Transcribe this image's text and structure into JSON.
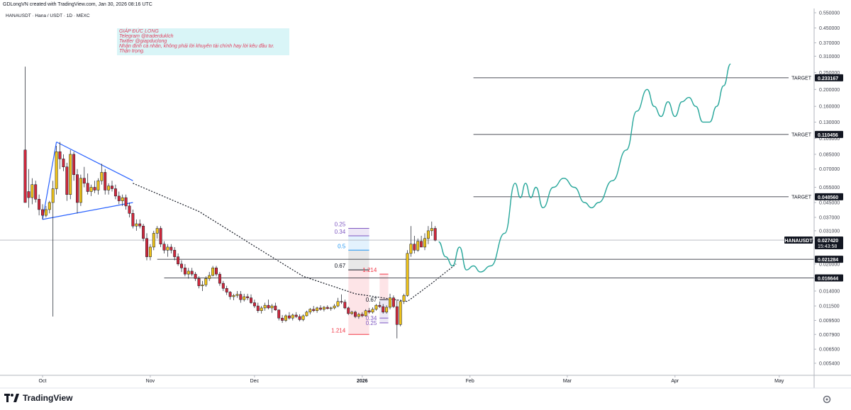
{
  "header": {
    "credit": "GDLongVN created with TradingView.com, Jan 30, 2026 08:16 UTC",
    "symbol_title": "HANAUSDT · Hana / USDT · 1D · MEXC"
  },
  "note": {
    "lines": [
      "GIÁP ĐỨC LONG",
      "Telegram @traderduklch",
      "Twitter @giapduclong",
      "Nhận định cá nhân, không phải lời khuyên tài chính hay lời kêu đầu tư.",
      "Thận trọng."
    ]
  },
  "footer": {
    "logo_text": "TradingView"
  },
  "colors": {
    "up": "#f0c419",
    "down": "#d0283c",
    "triangle": "#2962ff",
    "projection": "#26a69a",
    "fib_purple": "#7e57c2",
    "fib_blue": "#2196f3",
    "fib_red": "#f23645"
  },
  "chart_data": {
    "type": "candlestick",
    "y_scale": "log",
    "y_ticks": [
      "0.550000",
      "0.450000",
      "0.370000",
      "0.310000",
      "0.250000",
      "0.200000",
      "0.160000",
      "0.130000",
      "0.105000",
      "0.085000",
      "0.070000",
      "0.055000",
      "0.045000",
      "0.037000",
      "0.031000",
      "0.025000",
      "0.020000",
      "0.016500",
      "0.014000",
      "0.011500",
      "0.009500",
      "0.007900",
      "0.006500",
      "0.005400"
    ],
    "x_ticks": [
      {
        "label": "Oct",
        "day": 0
      },
      {
        "label": "Nov",
        "day": 31
      },
      {
        "label": "Dec",
        "day": 61
      },
      {
        "label": "2026",
        "day": 92,
        "bold": true
      },
      {
        "label": "Feb",
        "day": 123
      },
      {
        "label": "Mar",
        "day": 151
      },
      {
        "label": "Apr",
        "day": 182
      },
      {
        "label": "May",
        "day": 212
      }
    ],
    "candles_compact": "-5,0.09,0.27,0.055,0.045;-4,0.052,0.07,0.042,0.048;-3,0.048,0.062,0.044,0.057;-2,0.057,0.06,0.045,0.047;-1,0.047,0.05,0.038,0.041;0,0.041,0.044,0.036,0.038;1,0.038,0.043,0.037,0.041;2,0.041,0.046,0.039,0.045;3,0.045,0.06,0.01,0.054;4,0.054,0.095,0.05,0.088;5,0.088,0.1,0.07,0.08;6,0.08,0.085,0.068,0.072;7,0.072,0.076,0.046,0.05;8,0.05,0.09,0.047,0.085;9,0.085,0.088,0.06,0.065;10,0.065,0.07,0.039,0.045;11,0.045,0.065,0.043,0.062;12,0.062,0.072,0.055,0.058;13,0.058,0.066,0.05,0.052;14,0.052,0.057,0.049,0.055;15,0.055,0.06,0.051,0.053;16,0.053,0.062,0.05,0.06;17,0.06,0.075,0.057,0.067;18,0.067,0.07,0.05,0.053;19,0.053,0.058,0.05,0.056;20,0.056,0.06,0.052,0.054;21,0.054,0.057,0.047,0.049;22,0.049,0.052,0.044,0.046;23,0.046,0.05,0.043,0.048;24,0.048,0.05,0.041,0.043;25,0.043,0.045,0.037,0.039;26,0.039,0.041,0.032,0.033;27,0.033,0.036,0.031,0.034;28,0.034,0.036,0.032,0.033;29,0.033,0.034,0.027,0.028;30,0.028,0.03,0.021,0.022;31,0.022,0.026,0.021,0.025;32,0.025,0.031,0.024,0.03;33,0.03,0.033,0.028,0.032;34,0.032,0.033,0.025,0.026;35,0.026,0.027,0.023,0.024;36,0.024,0.026,0.022,0.025;37,0.025,0.026,0.023,0.024;38,0.024,0.025,0.021,0.022;39,0.022,0.023,0.0195,0.02;40,0.02,0.021,0.018,0.019;41,0.019,0.02,0.017,0.0175;42,0.0175,0.019,0.0165,0.0182;43,0.0182,0.019,0.017,0.0175;44,0.0175,0.018,0.016,0.0165;45,0.0165,0.017,0.0145,0.015;46,0.015,0.016,0.014,0.0152;47,0.0152,0.017,0.0148,0.0165;48,0.0165,0.018,0.016,0.0172;49,0.0172,0.0195,0.017,0.019;50,0.019,0.0195,0.017,0.0175;51,0.0175,0.018,0.015,0.0155;52,0.0155,0.016,0.014,0.0145;53,0.0145,0.015,0.0133,0.0138;54,0.0138,0.014,0.0125,0.013;55,0.013,0.0135,0.0124,0.0132;56,0.0132,0.014,0.0128,0.0134;57,0.0134,0.014,0.012,0.0125;58,0.0125,0.0135,0.0122,0.013;59,0.013,0.0135,0.0124,0.0128;60,0.0128,0.0134,0.0118,0.012;61,0.012,0.0125,0.0112,0.0115;62,0.0115,0.012,0.0105,0.0108;63,0.0108,0.0115,0.0104,0.0112;64,0.0112,0.012,0.0108,0.0116;65,0.0116,0.0125,0.011,0.0112;66,0.0112,0.0118,0.0105,0.0115;67,0.0115,0.012,0.0108,0.0109;68,0.0109,0.011,0.0095,0.0098;69,0.0098,0.0102,0.0092,0.0095;70,0.0095,0.0103,0.0093,0.0101;71,0.0101,0.0106,0.0096,0.0098;72,0.0098,0.0104,0.0095,0.0102;73,0.0102,0.0106,0.0098,0.01;74,0.01,0.0103,0.0094,0.0096;75,0.0096,0.0103,0.0094,0.0101;76,0.0101,0.0108,0.01,0.0106;77,0.0106,0.0112,0.0103,0.011;78,0.011,0.0115,0.0106,0.0108;79,0.0108,0.0114,0.0105,0.0112;80,0.0112,0.0116,0.0108,0.011;81,0.011,0.0115,0.0107,0.0113;82,0.0113,0.0116,0.011,0.0111;83,0.0111,0.0114,0.0108,0.0112;84,0.0112,0.0118,0.011,0.0115;85,0.0115,0.0128,0.0113,0.0122;86,0.0122,0.0134,0.0118,0.0121;87,0.0121,0.0125,0.011,0.0112;88,0.0112,0.0114,0.0102,0.0104;89,0.0104,0.0108,0.0102,0.0106;90,0.0106,0.0108,0.0098,0.01;91,0.01,0.0105,0.0097,0.0103;92,0.0103,0.0106,0.0099,0.0101;93,0.0101,0.011,0.01,0.0108;94,0.0108,0.0112,0.0104,0.0106;95,0.0106,0.0113,0.0104,0.011;96,0.011,0.0118,0.0108,0.0116;97,0.0116,0.0122,0.0112,0.0114;98,0.0114,0.0118,0.0104,0.0106;99,0.0106,0.0116,0.0104,0.0113;100,0.0113,0.0135,0.011,0.0128;101,0.0128,0.0132,0.0112,0.0114;102,0.0114,0.0125,0.0075,0.009;103,0.009,0.0125,0.0088,0.0122;104,0.0122,0.0135,0.0118,0.0132;105,0.0132,0.024,0.013,0.023;106,0.023,0.033,0.022,0.026;107,0.026,0.029,0.023,0.024;108,0.024,0.028,0.0235,0.027;109,0.027,0.029,0.025,0.025;110,0.025,0.03,0.024,0.028;111,0.028,0.033,0.026,0.031;112,0.031,0.035,0.029,0.032;113,0.032,0.033,0.027,0.0274",
    "price_lines": [
      {
        "label": "TARGET",
        "value": 0.233167,
        "text": "0.233167"
      },
      {
        "label": "TARGET",
        "value": 0.110456,
        "text": "0.110456"
      },
      {
        "label": "TARGET",
        "value": 0.04856,
        "text": "0.048560"
      }
    ],
    "horizontal_levels": [
      {
        "value": 0.021284,
        "text": "0.021284"
      },
      {
        "value": 0.016644,
        "text": "0.016644"
      }
    ],
    "last_price": {
      "symbol": "HANAUSDT",
      "value": 0.02742,
      "text": "0.027420",
      "countdown": "15:43:58"
    },
    "fib_left": [
      {
        "label": "0.25",
        "value": 0.032
      },
      {
        "label": "0.34",
        "value": 0.029
      },
      {
        "label": "0.5",
        "value": 0.024
      },
      {
        "label": "0.67",
        "value": 0.0185
      },
      {
        "label": "1.214",
        "value": 0.0079
      }
    ],
    "fib_right": [
      {
        "label": "1.214",
        "value": 0.0175
      },
      {
        "label": "0.67",
        "value": 0.0125
      },
      {
        "label": "0.34",
        "value": 0.0098
      },
      {
        "label": "0.25",
        "value": 0.0092
      }
    ],
    "triangle": {
      "upper": [
        [
          4,
          0.1
        ],
        [
          26,
          0.06
        ]
      ],
      "lower": [
        [
          0,
          0.036
        ],
        [
          26,
          0.045
        ]
      ]
    },
    "dotted_curve": [
      [
        26,
        0.058
      ],
      [
        45,
        0.04
      ],
      [
        60,
        0.026
      ],
      [
        75,
        0.017
      ],
      [
        90,
        0.0135
      ],
      [
        105,
        0.0122
      ],
      [
        112,
        0.0155
      ],
      [
        119,
        0.02
      ]
    ],
    "projection": [
      [
        114,
        0.0268
      ],
      [
        116,
        0.022
      ],
      [
        118,
        0.0195
      ],
      [
        120,
        0.025
      ],
      [
        122,
        0.0185
      ],
      [
        124,
        0.0195
      ],
      [
        126,
        0.018
      ],
      [
        129,
        0.0195
      ],
      [
        133,
        0.03
      ],
      [
        136,
        0.058
      ],
      [
        137.5,
        0.048
      ],
      [
        139,
        0.058
      ],
      [
        140.5,
        0.048
      ],
      [
        142,
        0.055
      ],
      [
        144,
        0.042
      ],
      [
        147,
        0.055
      ],
      [
        150,
        0.062
      ],
      [
        153,
        0.055
      ],
      [
        156,
        0.045
      ],
      [
        158,
        0.042
      ],
      [
        160,
        0.045
      ],
      [
        164,
        0.06
      ],
      [
        168,
        0.09
      ],
      [
        171,
        0.15
      ],
      [
        174,
        0.2
      ],
      [
        176,
        0.16
      ],
      [
        178,
        0.14
      ],
      [
        180,
        0.17
      ],
      [
        182,
        0.14
      ],
      [
        184,
        0.17
      ],
      [
        186,
        0.18
      ],
      [
        188,
        0.16
      ],
      [
        190,
        0.13
      ],
      [
        192,
        0.13
      ],
      [
        194,
        0.16
      ],
      [
        196,
        0.21
      ],
      [
        198,
        0.28
      ]
    ]
  }
}
